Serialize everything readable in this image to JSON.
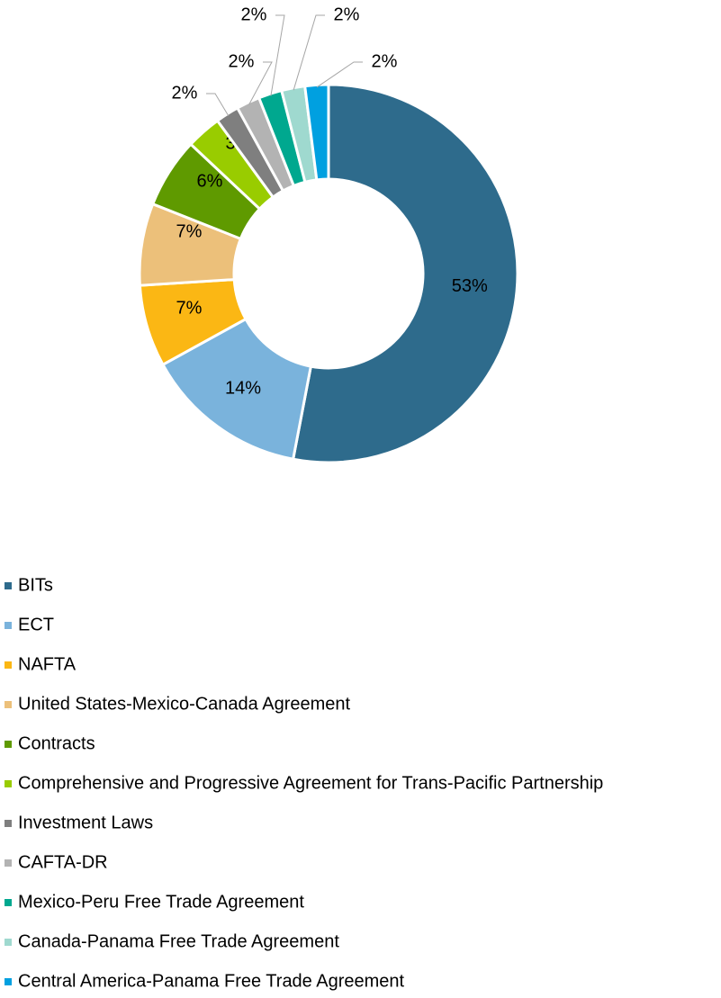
{
  "chart_data": {
    "type": "donut",
    "categories": [
      "BITs",
      "ECT",
      "NAFTA",
      "United States-Mexico-Canada Agreement",
      "Contracts",
      "Comprehensive and Progressive Agreement for Trans-Pacific Partnership",
      "Investment Laws",
      "CAFTA-DR",
      "Mexico-Peru Free Trade Agreement",
      "Canada-Panama Free Trade Agreement",
      "Central America-Panama Free Trade Agreement"
    ],
    "values": [
      53,
      14,
      7,
      7,
      6,
      3,
      2,
      2,
      2,
      2,
      2
    ],
    "value_labels": [
      "53%",
      "14%",
      "7%",
      "7%",
      "6%",
      "3%",
      "2%",
      "2%",
      "2%",
      "2%",
      "2%"
    ],
    "colors": [
      "#2e6b8c",
      "#7ab3dc",
      "#fbb714",
      "#ecc07a",
      "#5f9a00",
      "#99cc00",
      "#7f7f7f",
      "#b3b3b3",
      "#00a88f",
      "#9fd9cf",
      "#00a0e0"
    ],
    "legend": "bottom"
  }
}
